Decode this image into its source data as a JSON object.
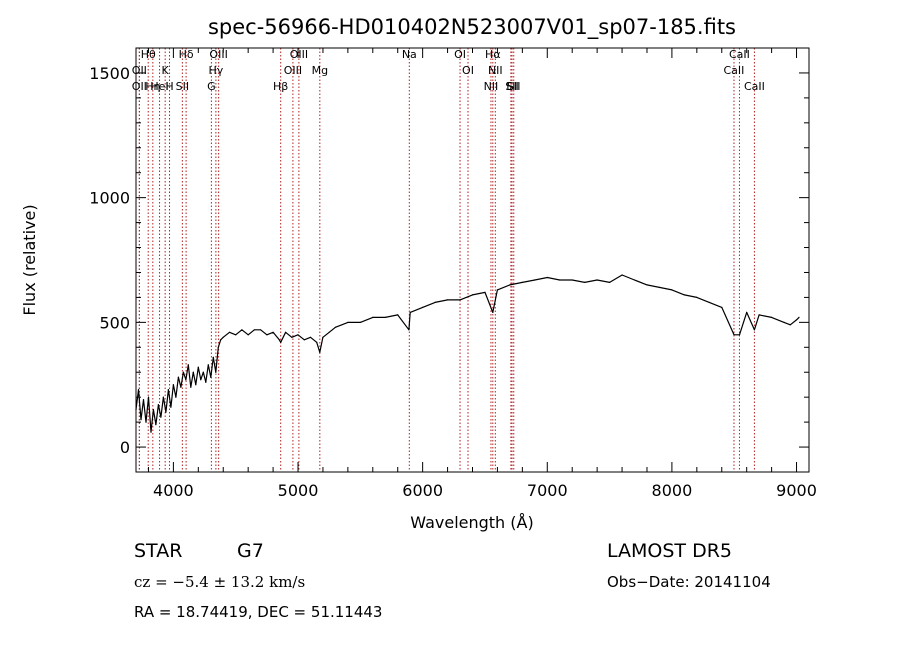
{
  "chart_data": {
    "type": "line",
    "title": "spec-56966-HD010402N523007V01_sp07-185.fits",
    "xlabel": "Wavelength (Å)",
    "ylabel": "Flux (relative)",
    "xlim": [
      3700,
      9100
    ],
    "ylim": [
      -100,
      1600
    ],
    "xticks": [
      4000,
      5000,
      6000,
      7000,
      8000,
      9000
    ],
    "yticks": [
      0,
      500,
      1000,
      1500
    ],
    "grid": false,
    "legend": "none",
    "line_color": "#000000",
    "marker_color": "#b22222",
    "series": [
      {
        "x": [
          3700,
          3720,
          3740,
          3760,
          3780,
          3800,
          3820,
          3840,
          3860,
          3880,
          3900,
          3920,
          3940,
          3960,
          3980,
          4000,
          4020,
          4040,
          4060,
          4080,
          4100,
          4120,
          4140,
          4160,
          4180,
          4200,
          4220,
          4240,
          4260,
          4280,
          4300,
          4320,
          4340,
          4360,
          4380,
          4400,
          4450,
          4500,
          4550,
          4600,
          4650,
          4700,
          4750,
          4800,
          4850,
          4861,
          4900,
          4950,
          5000,
          5050,
          5100,
          5150,
          5175,
          5200,
          5250,
          5300,
          5400,
          5500,
          5600,
          5700,
          5800,
          5890,
          5900,
          6000,
          6100,
          6200,
          6300,
          6400,
          6500,
          6563,
          6600,
          6700,
          6800,
          6900,
          7000,
          7100,
          7200,
          7300,
          7400,
          7500,
          7600,
          7700,
          7800,
          7900,
          8000,
          8100,
          8200,
          8300,
          8400,
          8498,
          8542,
          8600,
          8662,
          8700,
          8800,
          8900,
          8950,
          9000,
          9020
        ],
        "y": [
          150,
          230,
          110,
          190,
          100,
          200,
          60,
          150,
          90,
          170,
          120,
          200,
          140,
          230,
          160,
          250,
          200,
          280,
          240,
          300,
          270,
          330,
          240,
          300,
          250,
          320,
          270,
          300,
          260,
          330,
          280,
          360,
          300,
          400,
          430,
          440,
          460,
          450,
          470,
          450,
          470,
          470,
          450,
          460,
          430,
          420,
          460,
          440,
          450,
          430,
          440,
          420,
          380,
          440,
          460,
          480,
          500,
          500,
          520,
          520,
          530,
          470,
          540,
          560,
          580,
          590,
          590,
          610,
          620,
          540,
          630,
          650,
          660,
          670,
          680,
          670,
          670,
          660,
          670,
          660,
          690,
          670,
          650,
          640,
          630,
          610,
          600,
          580,
          560,
          450,
          450,
          540,
          470,
          530,
          520,
          500,
          490,
          510,
          520
        ]
      }
    ],
    "line_markers": [
      {
        "label": "Hθ",
        "x": 3798
      },
      {
        "label": "OII",
        "x": 3727
      },
      {
        "label": "Hη",
        "x": 3835
      },
      {
        "label": "OII",
        "x": 3727
      },
      {
        "label": "K",
        "x": 3934
      },
      {
        "label": "HeI",
        "x": 3889
      },
      {
        "label": "H",
        "x": 3969
      },
      {
        "label": "Hδ",
        "x": 4102
      },
      {
        "label": "SII",
        "x": 4072
      },
      {
        "label": "OIII",
        "x": 4363
      },
      {
        "label": "Hγ",
        "x": 4341
      },
      {
        "label": "G",
        "x": 4305
      },
      {
        "label": "OIII",
        "x": 5007
      },
      {
        "label": "OIII",
        "x": 4959
      },
      {
        "label": "Hβ",
        "x": 4861
      },
      {
        "label": "Mg",
        "x": 5175
      },
      {
        "label": "Na",
        "x": 5893
      },
      {
        "label": "OI",
        "x": 6300
      },
      {
        "label": "OI",
        "x": 6364
      },
      {
        "label": "Hα",
        "x": 6563
      },
      {
        "label": "NII",
        "x": 6548
      },
      {
        "label": "NII",
        "x": 6583
      },
      {
        "label": "SII",
        "x": 6717
      },
      {
        "label": "Li",
        "x": 6708
      },
      {
        "label": "SII",
        "x": 6731
      },
      {
        "label": "CaII",
        "x": 8542
      },
      {
        "label": "CaII",
        "x": 8498
      },
      {
        "label": "CaII",
        "x": 8662
      }
    ]
  },
  "info": {
    "class_label": "STAR",
    "subclass": "G7",
    "survey": "LAMOST DR5",
    "cz": "cz = −5.4 ± 13.2 km/s",
    "obs_date": "Obs−Date: 20141104",
    "coords": "RA =  18.74419, DEC =  51.11443"
  }
}
